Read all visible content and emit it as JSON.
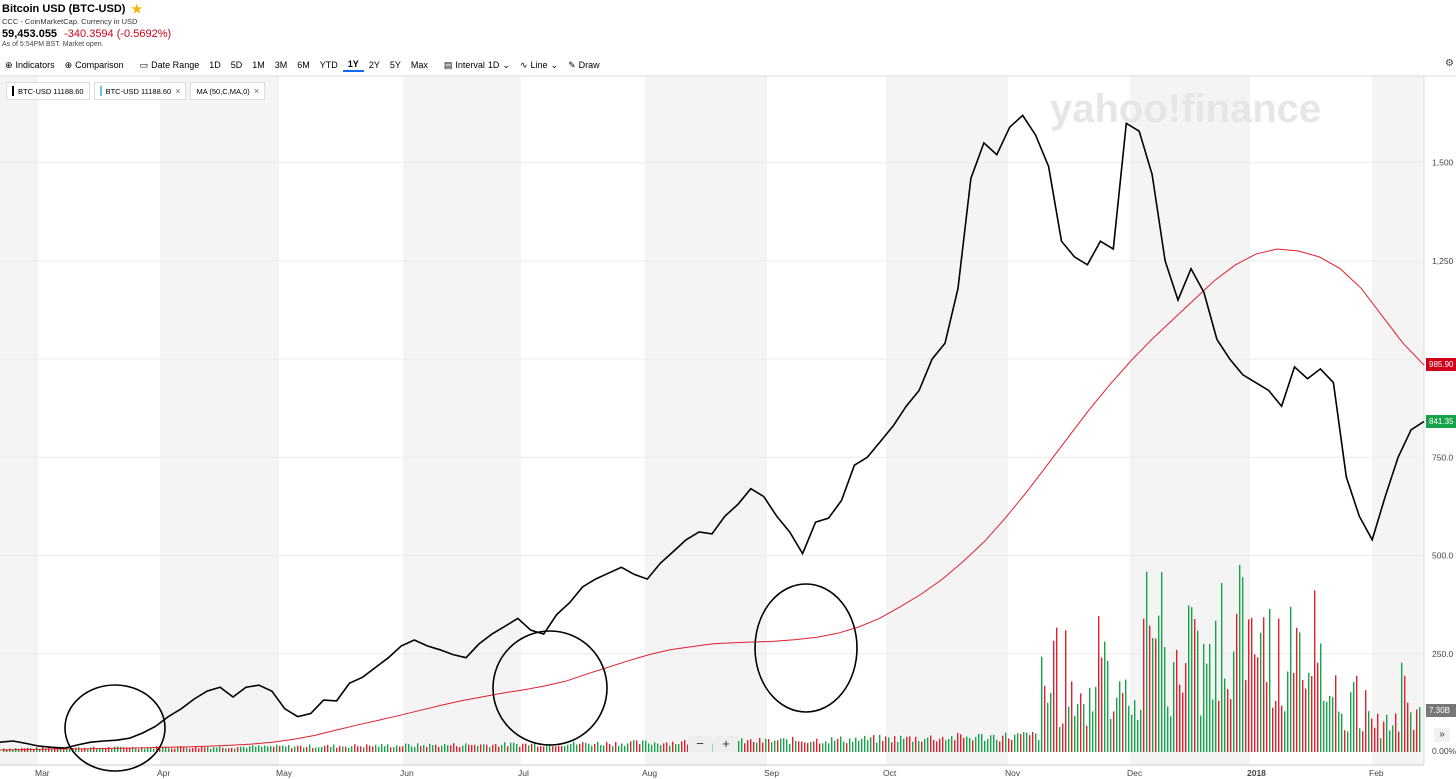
{
  "header": {
    "title": "Bitcoin USD (BTC-USD)",
    "subtitle": "CCC - CoinMarketCap. Currency in USD",
    "price": "59,453.055",
    "change": "-340.3594 (-0.5692%)",
    "as_of": "As of 5:54PM BST. Market open."
  },
  "toolbar": {
    "indicators": "Indicators",
    "comparison": "Comparison",
    "date_range": "Date Range",
    "ranges": [
      "1D",
      "5D",
      "1M",
      "3M",
      "6M",
      "YTD",
      "1Y",
      "2Y",
      "5Y",
      "Max"
    ],
    "selected_range": "1Y",
    "interval_label": "Interval",
    "interval_value": "1D",
    "chart_type": "Line",
    "draw": "Draw"
  },
  "legend": [
    {
      "label": "BTC-USD  11188.60",
      "color": "#000000",
      "closable": false
    },
    {
      "label": "BTC-USD  11188.60",
      "color": "#5ec8f0",
      "closable": true
    },
    {
      "label": "MA (50,C,MA,0)",
      "color": "",
      "closable": true
    }
  ],
  "watermark": "yahoo!finance",
  "tags": {
    "ma_value": "985.90",
    "last_value": "841.35",
    "volume": "7.30B",
    "volume_axis": "0.00%"
  },
  "controls": {
    "zoom_out": "−",
    "zoom_in": "+",
    "expand": "»"
  },
  "colors": {
    "price_line": "#000000",
    "ma_line": "#e0202c",
    "up_volume": "#16a34a",
    "down_volume": "#e0202c",
    "ma_tag": "#d0021b",
    "last_tag": "#16a34a"
  },
  "chart_data": {
    "type": "line",
    "x_labels": [
      "Mar",
      "Apr",
      "May",
      "Jun",
      "Jul",
      "Aug",
      "Sep",
      "Oct",
      "Nov",
      "Dec",
      "2018",
      "Feb"
    ],
    "y_ticks": [
      250,
      500,
      750,
      1000,
      1250,
      1500
    ],
    "y_tick_labels": [
      "250.0",
      "500.0",
      "750.0",
      "",
      "1,250",
      "1,500"
    ],
    "ylim": [
      0,
      1700
    ],
    "series": [
      {
        "values": [
          25,
          28,
          22,
          15,
          12,
          10,
          18,
          25,
          28,
          30,
          35,
          48,
          65,
          90,
          110,
          135,
          155,
          165,
          140,
          165,
          170,
          155,
          110,
          90,
          98,
          132,
          130,
          175,
          190,
          215,
          240,
          270,
          285,
          270,
          260,
          248,
          240,
          275,
          300,
          320,
          340,
          310,
          300,
          350,
          380,
          420,
          440,
          455,
          470,
          452,
          440,
          480,
          510,
          540,
          560,
          555,
          600,
          630,
          670,
          650,
          600,
          560,
          505,
          585,
          595,
          640,
          730,
          750,
          790,
          830,
          880,
          920,
          1000,
          1040,
          1180,
          1460,
          1550,
          1520,
          1590,
          1620,
          1570,
          1490,
          1300,
          1260,
          1240,
          1300,
          1280,
          1600,
          1580,
          1470,
          1250,
          1150,
          1230,
          1170,
          1050,
          1000,
          960,
          940,
          920,
          880,
          980,
          950,
          975,
          940,
          700,
          600,
          540,
          650,
          750,
          820,
          841
        ]
      },
      {
        "values": [
          5,
          6,
          7,
          8,
          8,
          9,
          10,
          11,
          12,
          13,
          15,
          17,
          20,
          25,
          32,
          42,
          55,
          68,
          80,
          92,
          105,
          118,
          130,
          140,
          150,
          158,
          168,
          180,
          198,
          215,
          232,
          248,
          260,
          268,
          275,
          278,
          280,
          282,
          286,
          292,
          302,
          318,
          340,
          370,
          402,
          440,
          485,
          535,
          595,
          660,
          730,
          800,
          870,
          935,
          995,
          1050,
          1100,
          1150,
          1200,
          1240,
          1268,
          1280,
          1275,
          1260,
          1230,
          1180,
          1110,
          1040,
          985
        ]
      }
    ]
  }
}
